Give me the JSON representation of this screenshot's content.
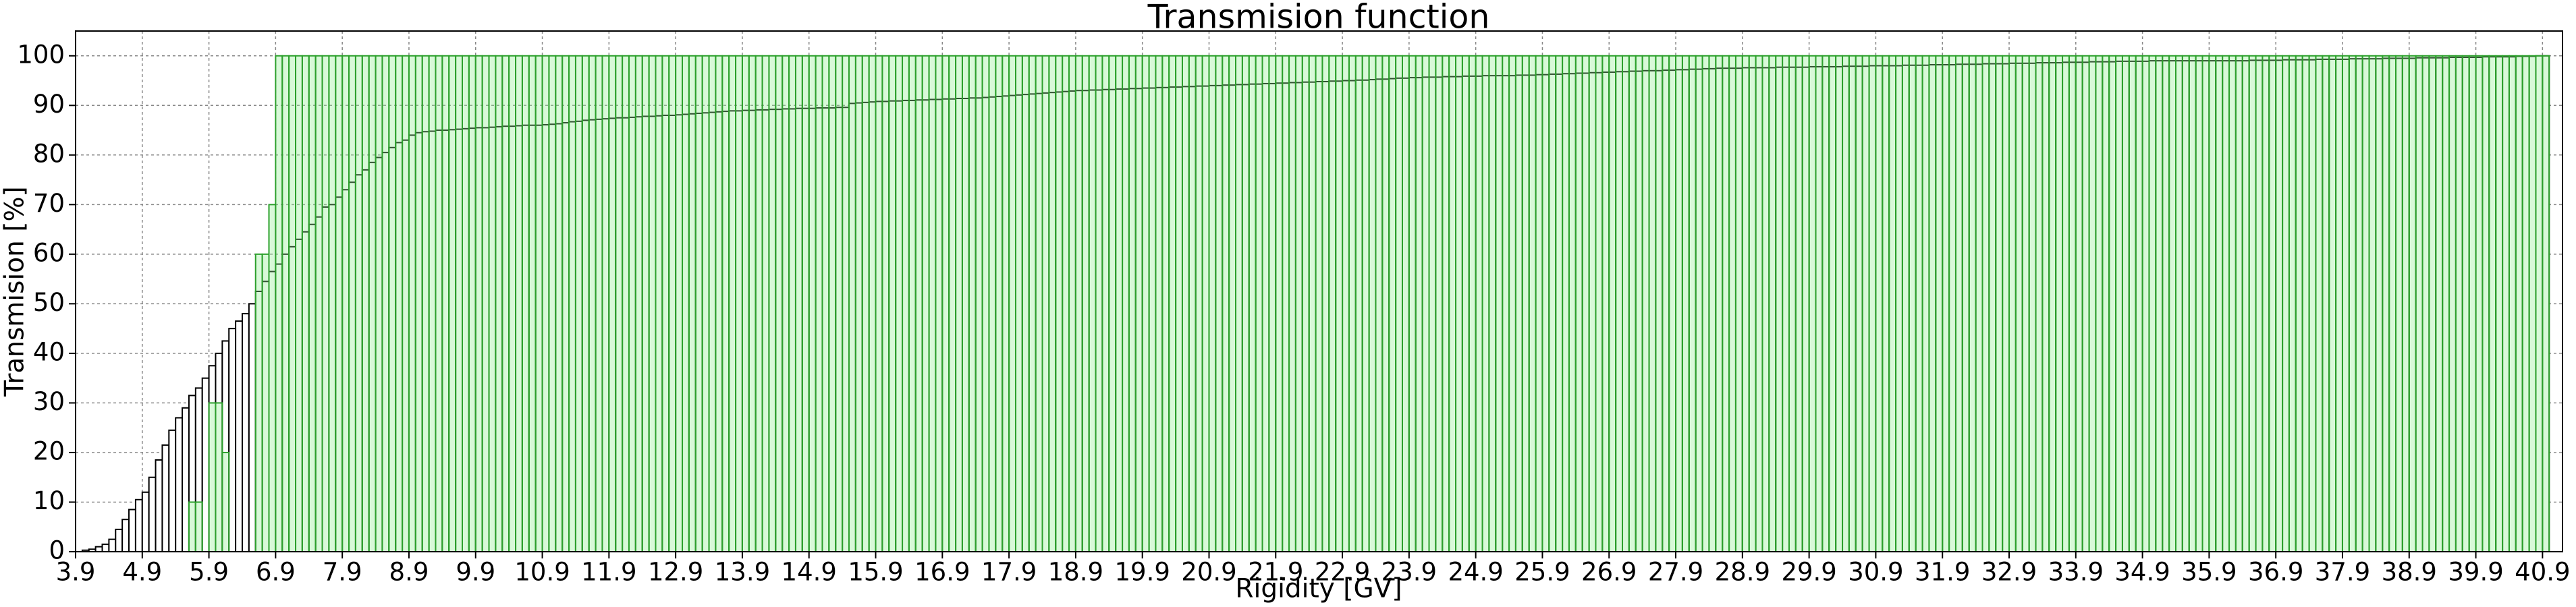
{
  "chart_data": {
    "type": "histogram",
    "title": "Transmision function",
    "x_label": "Rigidity [GV]",
    "y_label": "Transmision [%]",
    "bins": [
      3.9,
      4.0,
      4.1,
      4.2,
      4.3,
      4.4,
      4.5,
      4.6,
      4.7,
      4.8,
      4.9,
      5.0,
      5.1,
      5.2,
      5.3,
      5.4,
      5.5,
      5.6,
      5.7,
      5.8,
      5.9,
      6.0,
      6.1,
      6.2,
      6.3,
      6.4,
      6.5,
      6.6,
      6.7,
      6.8,
      6.9,
      7.0,
      7.1,
      7.2,
      7.3,
      7.4,
      7.5,
      7.6,
      7.7,
      7.8,
      7.9,
      8.0,
      8.1,
      8.2,
      8.3,
      8.4,
      8.5,
      8.6,
      8.7,
      8.8,
      8.9,
      9.0,
      9.1,
      9.2,
      9.3,
      9.4,
      9.5,
      9.6,
      9.7,
      9.8,
      9.9,
      10.0,
      10.1,
      10.2,
      10.3,
      10.4,
      10.5,
      10.6,
      10.7,
      10.8,
      10.9,
      11.0,
      11.1,
      11.2,
      11.3,
      11.4,
      11.5,
      11.6,
      11.7,
      11.8,
      11.9,
      12.0,
      12.1,
      12.2,
      12.3,
      12.4,
      12.5,
      12.6,
      12.7,
      12.8,
      12.9,
      13.0,
      13.1,
      13.2,
      13.3,
      13.4,
      13.5,
      13.6,
      13.7,
      13.8,
      13.9,
      14.0,
      14.1,
      14.2,
      14.3,
      14.4,
      14.5,
      14.6,
      14.7,
      14.8,
      14.9,
      15.0,
      15.1,
      15.2,
      15.3,
      15.4,
      15.5,
      15.6,
      15.7,
      15.8,
      15.9,
      16.0,
      16.1,
      16.2,
      16.3,
      16.4,
      16.5,
      16.6,
      16.7,
      16.8,
      16.9,
      17.0,
      17.1,
      17.2,
      17.3,
      17.4,
      17.5,
      17.6,
      17.7,
      17.8,
      17.9,
      18.0,
      18.1,
      18.2,
      18.3,
      18.4,
      18.5,
      18.6,
      18.7,
      18.8,
      18.9,
      19.0,
      19.1,
      19.2,
      19.3,
      19.4,
      19.5,
      19.6,
      19.7,
      19.8,
      19.9,
      20.0,
      20.1,
      20.2,
      20.3,
      20.4,
      20.5,
      20.6,
      20.7,
      20.8,
      20.9,
      21.0,
      21.1,
      21.2,
      21.3,
      21.4,
      21.5,
      21.6,
      21.7,
      21.8,
      21.9,
      22.0,
      22.1,
      22.2,
      22.3,
      22.4,
      22.5,
      22.6,
      22.7,
      22.8,
      22.9,
      23.0,
      23.1,
      23.2,
      23.3,
      23.4,
      23.5,
      23.6,
      23.7,
      23.8,
      23.9,
      24.0,
      24.1,
      24.2,
      24.3,
      24.4,
      24.5,
      24.6,
      24.7,
      24.8,
      24.9,
      25.0,
      25.1,
      25.2,
      25.3,
      25.4,
      25.5,
      25.6,
      25.7,
      25.8,
      25.9,
      26.0,
      26.1,
      26.2,
      26.3,
      26.4,
      26.5,
      26.6,
      26.7,
      26.8,
      26.9,
      27.0,
      27.1,
      27.2,
      27.3,
      27.4,
      27.5,
      27.6,
      27.7,
      27.8,
      27.9,
      28.0,
      28.1,
      28.2,
      28.3,
      28.4,
      28.5,
      28.6,
      28.7,
      28.8,
      28.9,
      29.0,
      29.1,
      29.2,
      29.3,
      29.4,
      29.5,
      29.6,
      29.7,
      29.8,
      29.9,
      30.0,
      30.1,
      30.2,
      30.3,
      30.4,
      30.5,
      30.6,
      30.7,
      30.8,
      30.9,
      31.0,
      31.1,
      31.2,
      31.3,
      31.4,
      31.5,
      31.6,
      31.7,
      31.8,
      31.9,
      32.0,
      32.1,
      32.2,
      32.3,
      32.4,
      32.5,
      32.6,
      32.7,
      32.8,
      32.9,
      33.0,
      33.1,
      33.2,
      33.3,
      33.4,
      33.5,
      33.6,
      33.7,
      33.8,
      33.9,
      34.0,
      34.1,
      34.2,
      34.3,
      34.4,
      34.5,
      34.6,
      34.7,
      34.8,
      34.9,
      35.0,
      35.1,
      35.2,
      35.3,
      35.4,
      35.5,
      35.6,
      35.7,
      35.8,
      35.9,
      36.0,
      36.1,
      36.2,
      36.3,
      36.4,
      36.5,
      36.6,
      36.7,
      36.8,
      36.9,
      37.0,
      37.1,
      37.2,
      37.3,
      37.4,
      37.5,
      37.6,
      37.7,
      37.8,
      37.9,
      38.0,
      38.1,
      38.2,
      38.3,
      38.4,
      38.5,
      38.6,
      38.7,
      38.8,
      38.9,
      39.0,
      39.1,
      39.2,
      39.3,
      39.4,
      39.5,
      39.6,
      39.7,
      39.8,
      39.9,
      40.0,
      40.1,
      40.2,
      40.3,
      40.4,
      40.5,
      40.6,
      40.7,
      40.8,
      40.9,
      41.0
    ],
    "series": [
      {
        "color": "#ffffff",
        "edgecolor": "#000000",
        "values": [
          0,
          0.3,
          0.5,
          1,
          1.5,
          2.5,
          4.5,
          6.5,
          8.5,
          10.5,
          12,
          15,
          18.5,
          21.5,
          24.5,
          27,
          29,
          31.5,
          33,
          35,
          37.5,
          40,
          42.5,
          45,
          46.5,
          48,
          50,
          52.5,
          54.5,
          56.5,
          58,
          60,
          61.5,
          63,
          64.5,
          66,
          67.5,
          69.5,
          70,
          71.5,
          73,
          74.5,
          76,
          77,
          78.5,
          79.5,
          80.5,
          81.5,
          82.5,
          83,
          84,
          84.5,
          84.7,
          84.8,
          85,
          85,
          85.1,
          85.2,
          85.3,
          85.4,
          85.5,
          85.5,
          85.6,
          85.7,
          85.8,
          85.8,
          85.9,
          86,
          86,
          86,
          86.1,
          86.2,
          86.3,
          86.5,
          86.7,
          86.8,
          87,
          87.1,
          87.2,
          87.3,
          87.4,
          87.5,
          87.5,
          87.6,
          87.7,
          87.8,
          87.8,
          87.9,
          88,
          88,
          88.1,
          88.2,
          88.3,
          88.4,
          88.5,
          88.6,
          88.7,
          88.8,
          88.9,
          88.9,
          89,
          89,
          89.1,
          89.1,
          89.2,
          89.2,
          89.3,
          89.3,
          89.4,
          89.4,
          89.4,
          89.5,
          89.5,
          89.5,
          89.6,
          89.6,
          90.4,
          90.5,
          90.6,
          90.7,
          90.8,
          90.8,
          90.9,
          90.9,
          91,
          91,
          91.1,
          91.1,
          91.2,
          91.2,
          91.3,
          91.3,
          91.4,
          91.4,
          91.5,
          91.5,
          91.6,
          91.7,
          91.8,
          91.9,
          92,
          92.1,
          92.2,
          92.3,
          92.4,
          92.5,
          92.6,
          92.7,
          92.8,
          92.9,
          93,
          93,
          93.1,
          93.1,
          93.2,
          93.2,
          93.3,
          93.3,
          93.4,
          93.4,
          93.5,
          93.5,
          93.6,
          93.6,
          93.7,
          93.7,
          93.8,
          93.8,
          93.9,
          93.9,
          94,
          94,
          94.1,
          94.1,
          94.2,
          94.2,
          94.3,
          94.3,
          94.4,
          94.4,
          94.5,
          94.5,
          94.6,
          94.6,
          94.7,
          94.7,
          94.8,
          94.8,
          94.9,
          94.9,
          95,
          95,
          95.1,
          95.1,
          95.2,
          95.3,
          95.3,
          95.4,
          95.5,
          95.5,
          95.6,
          95.6,
          95.7,
          95.7,
          95.7,
          95.8,
          95.8,
          95.8,
          95.9,
          95.9,
          95.9,
          96,
          96,
          96,
          96,
          96,
          96.1,
          96.1,
          96.1,
          96.2,
          96.2,
          96.3,
          96.3,
          96.4,
          96.4,
          96.5,
          96.5,
          96.6,
          96.6,
          96.7,
          96.7,
          96.8,
          96.8,
          96.9,
          96.9,
          97,
          97,
          97,
          97.1,
          97.1,
          97.2,
          97.2,
          97.3,
          97.3,
          97.4,
          97.4,
          97.5,
          97.5,
          97.5,
          97.5,
          97.6,
          97.6,
          97.6,
          97.6,
          97.6,
          97.7,
          97.7,
          97.7,
          97.7,
          97.7,
          97.8,
          97.8,
          97.8,
          97.8,
          97.8,
          97.9,
          97.9,
          97.9,
          97.9,
          98,
          98,
          98,
          98,
          98,
          98.1,
          98.1,
          98.1,
          98.1,
          98.2,
          98.2,
          98.2,
          98.2,
          98.3,
          98.3,
          98.3,
          98.3,
          98.4,
          98.4,
          98.4,
          98.4,
          98.5,
          98.5,
          98.5,
          98.5,
          98.6,
          98.6,
          98.6,
          98.6,
          98.7,
          98.7,
          98.7,
          98.7,
          98.8,
          98.8,
          98.8,
          98.8,
          98.9,
          98.9,
          98.9,
          98.9,
          98.9,
          99,
          99,
          99,
          99,
          99,
          99,
          99,
          99,
          99,
          99,
          99,
          99,
          99,
          99,
          99,
          99.1,
          99.1,
          99.1,
          99.1,
          99.1,
          99.2,
          99.2,
          99.2,
          99.2,
          99.2,
          99.3,
          99.3,
          99.3,
          99.3,
          99.3,
          99.4,
          99.4,
          99.4,
          99.4,
          99.4,
          99.5,
          99.5,
          99.5,
          99.5,
          99.5,
          99.6,
          99.6,
          99.6,
          99.6,
          99.6,
          99.7,
          99.7,
          99.7,
          99.7,
          99.7,
          99.8,
          99.8,
          99.8,
          99.8,
          99.8,
          99.9,
          99.9,
          99.9,
          100,
          100
        ]
      },
      {
        "color": "#90ee90",
        "edgecolor": "#2ca02c",
        "values": [
          null,
          null,
          null,
          null,
          null,
          null,
          null,
          null,
          null,
          null,
          null,
          null,
          null,
          null,
          null,
          null,
          null,
          10,
          10,
          null,
          30,
          30,
          20,
          null,
          null,
          null,
          null,
          60,
          60,
          70,
          100,
          100,
          100,
          100,
          100,
          100,
          100,
          100,
          100,
          100,
          100,
          100,
          100,
          100,
          100,
          100,
          100,
          100,
          100,
          100,
          100,
          100,
          100,
          100,
          100,
          100,
          100,
          100,
          100,
          100,
          100,
          100,
          100,
          100,
          100,
          100,
          100,
          100,
          100,
          100,
          100,
          100,
          100,
          100,
          100,
          100,
          100,
          100,
          100,
          100,
          100,
          100,
          100,
          100,
          100,
          100,
          100,
          100,
          100,
          100,
          100,
          100,
          100,
          100,
          100,
          100,
          100,
          100,
          100,
          100,
          100,
          100,
          100,
          100,
          100,
          100,
          100,
          100,
          100,
          100,
          100,
          100,
          100,
          100,
          100,
          100,
          100,
          100,
          100,
          100,
          100,
          100,
          100,
          100,
          100,
          100,
          100,
          100,
          100,
          100,
          100,
          100,
          100,
          100,
          100,
          100,
          100,
          100,
          100,
          100,
          100,
          100,
          100,
          100,
          100,
          100,
          100,
          100,
          100,
          100,
          100,
          100,
          100,
          100,
          100,
          100,
          100,
          100,
          100,
          100,
          100,
          100,
          100,
          100,
          100,
          100,
          100,
          100,
          100,
          100,
          100,
          100,
          100,
          100,
          100,
          100,
          100,
          100,
          100,
          100,
          100,
          100,
          100,
          100,
          100,
          100,
          100,
          100,
          100,
          100,
          100,
          100,
          100,
          100,
          100,
          100,
          100,
          100,
          100,
          100,
          100,
          100,
          100,
          100,
          100,
          100,
          100,
          100,
          100,
          100,
          100,
          100,
          100,
          100,
          100,
          100,
          100,
          100,
          100,
          100,
          100,
          100,
          100,
          100,
          100,
          100,
          100,
          100,
          100,
          100,
          100,
          100,
          100,
          100,
          100,
          100,
          100,
          100,
          100,
          100,
          100,
          100,
          100,
          100,
          100,
          100,
          100,
          100,
          100,
          100,
          100,
          100,
          100,
          100,
          100,
          100,
          100,
          100,
          100,
          100,
          100,
          100,
          100,
          100,
          100,
          100,
          100,
          100,
          100,
          100,
          100,
          100,
          100,
          100,
          100,
          100,
          100,
          100,
          100,
          100,
          100,
          100,
          100,
          100,
          100,
          100,
          100,
          100,
          100,
          100,
          100,
          100,
          100,
          100,
          100,
          100,
          100,
          100,
          100,
          100,
          100,
          100,
          100,
          100,
          100,
          100,
          100,
          100,
          100,
          100,
          100,
          100,
          100,
          100,
          100,
          100,
          100,
          100,
          100,
          100,
          100,
          100,
          100,
          100,
          100,
          100,
          100,
          100,
          100,
          100,
          100,
          100,
          100,
          100,
          100,
          100,
          100,
          100,
          100,
          100,
          100,
          100,
          100,
          100,
          100,
          100,
          100,
          100,
          100,
          100,
          100,
          100,
          100,
          100,
          100,
          100,
          100,
          100,
          100,
          100,
          100,
          100,
          100,
          100,
          100,
          100,
          100,
          100,
          100,
          100,
          100
        ]
      }
    ],
    "xlim": [
      3.9,
      41.2
    ],
    "ylim": [
      0,
      105
    ],
    "xticks": [
      3.9,
      4.9,
      5.9,
      6.9,
      7.9,
      8.9,
      9.9,
      10.9,
      11.9,
      12.9,
      13.9,
      14.9,
      15.9,
      16.9,
      17.9,
      18.9,
      19.9,
      20.9,
      21.9,
      22.9,
      23.9,
      24.9,
      25.9,
      26.9,
      27.9,
      28.9,
      29.9,
      30.9,
      31.9,
      32.9,
      33.9,
      34.9,
      35.9,
      36.9,
      37.9,
      38.9,
      39.9,
      40.9
    ],
    "yticks": [
      0,
      10,
      20,
      30,
      40,
      50,
      60,
      70,
      80,
      90,
      100
    ],
    "grid": true
  }
}
